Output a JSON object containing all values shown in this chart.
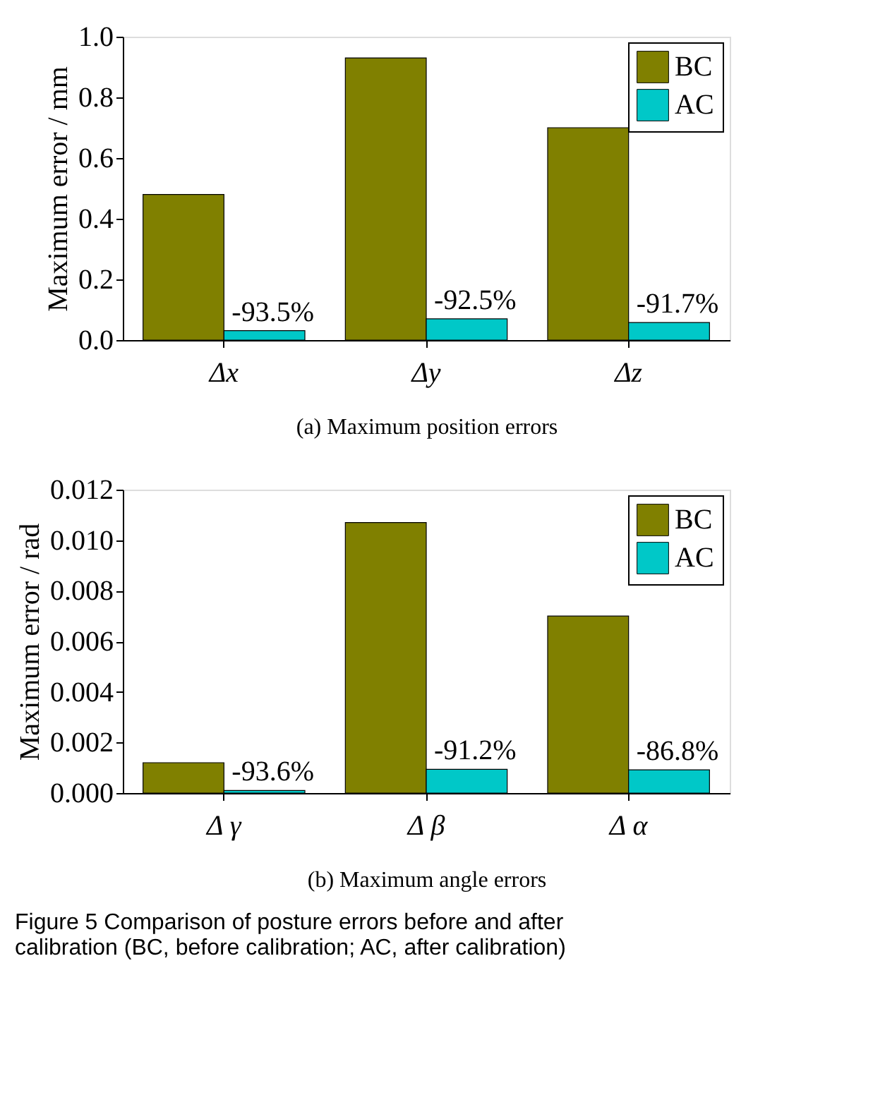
{
  "chart_data": [
    {
      "type": "bar",
      "xlabel": "(a) Maximum position errors",
      "ylabel": "Maximum error / mm",
      "categories": [
        "Δx",
        "Δy",
        "Δz"
      ],
      "ylim": [
        0,
        1.0
      ],
      "yticks": [
        {
          "value": 0,
          "label": "0.0"
        },
        0.2,
        0.4,
        0.6,
        0.8,
        {
          "value": 1,
          "label": "1.0"
        }
      ],
      "legend": "top right",
      "grid": false,
      "series": [
        {
          "name": "BC",
          "color": "#808000",
          "values": [
            0.48,
            0.93,
            0.7
          ]
        },
        {
          "name": "AC",
          "color": "#00c8c8",
          "values": [
            0.031,
            0.07,
            0.058
          ]
        }
      ],
      "annotations": [
        {
          "text": "-93.5%",
          "x": "Δx",
          "y": 0.031
        },
        {
          "text": "-92.5%",
          "x": "Δy",
          "y": 0.07
        },
        {
          "text": "-91.7%",
          "x": "Δz",
          "y": 0.058
        }
      ]
    },
    {
      "type": "bar",
      "xlabel": "(b) Maximum angle errors",
      "ylabel": "Maximum error / rad",
      "categories": [
        "Δ γ",
        "Δ β",
        "Δ α"
      ],
      "ylim": [
        0,
        0.012
      ],
      "yticks": [
        {
          "value": 0,
          "label": "0.000"
        },
        {
          "value": 0.002,
          "label": "0.002"
        },
        {
          "value": 0.004,
          "label": "0.004"
        },
        {
          "value": 0.006,
          "label": "0.006"
        },
        {
          "value": 0.008,
          "label": "0.008"
        },
        {
          "value": 0.01,
          "label": "0.010"
        },
        {
          "value": 0.012,
          "label": "0.012"
        }
      ],
      "legend": "top right",
      "grid": false,
      "series": [
        {
          "name": "BC",
          "color": "#808000",
          "values": [
            0.0012,
            0.0107,
            0.007
          ]
        },
        {
          "name": "AC",
          "color": "#00c8c8",
          "values": [
            0.0001,
            0.00094,
            0.00092
          ]
        }
      ],
      "annotations": [
        {
          "text": "-93.6%",
          "x": "Δ γ",
          "y": 0.0001
        },
        {
          "text": "-91.2%",
          "x": "Δ β",
          "y": 0.00094
        },
        {
          "text": "-86.8%",
          "x": "Δ α",
          "y": 0.00092
        },
        "Figure 5  Comparison of posture errors before and after calibration (BC, before calibration; AC, after calibration)"
      ]
    }
  ]
}
